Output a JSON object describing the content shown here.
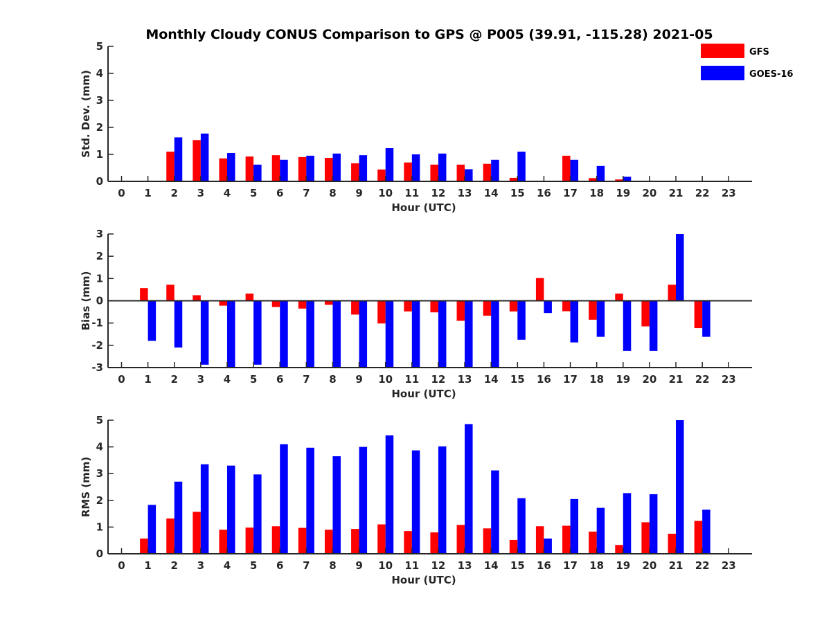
{
  "chart_data": {
    "title": "Monthly Cloudy CONUS Comparison to GPS @ P005 (39.91, -115.28) 2021-05",
    "legend": {
      "placement": "top-right",
      "entries": [
        {
          "name": "GFS",
          "color": "#ff0000"
        },
        {
          "name": "GOES-16",
          "color": "#0000ff"
        }
      ]
    },
    "panels": [
      {
        "type": "bar",
        "ylabel": "Std. Dev. (mm)",
        "xlabel": "Hour (UTC)",
        "ylim": [
          0,
          5
        ],
        "yticks": [
          0,
          1,
          2,
          3,
          4,
          5
        ],
        "categories": [
          "0",
          "1",
          "2",
          "3",
          "4",
          "5",
          "6",
          "7",
          "8",
          "9",
          "10",
          "11",
          "12",
          "13",
          "14",
          "15",
          "16",
          "17",
          "18",
          "19",
          "20",
          "21",
          "22",
          "23"
        ],
        "series": [
          {
            "name": "GFS",
            "values": [
              null,
              null,
              1.1,
              1.53,
              0.85,
              0.92,
              0.97,
              0.9,
              0.87,
              0.67,
              0.44,
              0.7,
              0.62,
              0.62,
              0.65,
              0.13,
              null,
              0.95,
              0.12,
              0.07,
              null,
              null,
              null,
              null
            ]
          },
          {
            "name": "GOES-16",
            "values": [
              null,
              null,
              1.63,
              1.77,
              1.05,
              0.62,
              0.8,
              0.95,
              1.03,
              0.97,
              1.23,
              1.0,
              1.03,
              0.45,
              0.8,
              1.1,
              null,
              0.8,
              0.57,
              0.17,
              null,
              null,
              null,
              null
            ]
          }
        ]
      },
      {
        "type": "bar",
        "ylabel": "Bias (mm)",
        "xlabel": "Hour (UTC)",
        "ylim": [
          -3,
          3
        ],
        "yticks": [
          -3,
          -2,
          -1,
          0,
          1,
          2,
          3
        ],
        "zero_line": true,
        "categories": [
          "0",
          "1",
          "2",
          "3",
          "4",
          "5",
          "6",
          "7",
          "8",
          "9",
          "10",
          "11",
          "12",
          "13",
          "14",
          "15",
          "16",
          "17",
          "18",
          "19",
          "20",
          "21",
          "22",
          "23"
        ],
        "series": [
          {
            "name": "GFS",
            "values": [
              null,
              0.57,
              0.72,
              0.25,
              -0.22,
              0.32,
              -0.28,
              -0.35,
              -0.18,
              -0.62,
              -1.02,
              -0.48,
              -0.52,
              -0.9,
              -0.67,
              -0.48,
              1.02,
              -0.47,
              -0.85,
              0.32,
              -1.15,
              0.72,
              -1.23,
              null
            ]
          },
          {
            "name": "GOES-16",
            "values": [
              null,
              -1.8,
              -2.1,
              -2.87,
              -3.0,
              -2.87,
              -3.0,
              -3.0,
              -3.0,
              -3.0,
              -3.0,
              -3.0,
              -3.0,
              -3.0,
              -3.0,
              -1.75,
              -0.55,
              -1.87,
              -1.62,
              -2.25,
              -2.25,
              3.0,
              -1.62,
              null
            ]
          }
        ]
      },
      {
        "type": "bar",
        "ylabel": "RMS (mm)",
        "xlabel": "Hour (UTC)",
        "ylim": [
          0,
          5
        ],
        "yticks": [
          0,
          1,
          2,
          3,
          4,
          5
        ],
        "categories": [
          "0",
          "1",
          "2",
          "3",
          "4",
          "5",
          "6",
          "7",
          "8",
          "9",
          "10",
          "11",
          "12",
          "13",
          "14",
          "15",
          "16",
          "17",
          "18",
          "19",
          "20",
          "21",
          "22",
          "23"
        ],
        "series": [
          {
            "name": "GFS",
            "values": [
              null,
              0.57,
              1.32,
              1.57,
              0.9,
              0.98,
              1.03,
              0.97,
              0.9,
              0.93,
              1.1,
              0.85,
              0.8,
              1.08,
              0.95,
              0.52,
              1.03,
              1.05,
              0.83,
              0.33,
              1.18,
              0.75,
              1.23,
              null
            ]
          },
          {
            "name": "GOES-16",
            "values": [
              null,
              1.83,
              2.7,
              3.35,
              3.3,
              2.97,
              4.1,
              3.97,
              3.65,
              4.0,
              4.43,
              3.87,
              4.02,
              4.85,
              3.12,
              2.08,
              0.57,
              2.05,
              1.72,
              2.27,
              2.23,
              5.0,
              1.65,
              null
            ]
          }
        ]
      }
    ]
  }
}
